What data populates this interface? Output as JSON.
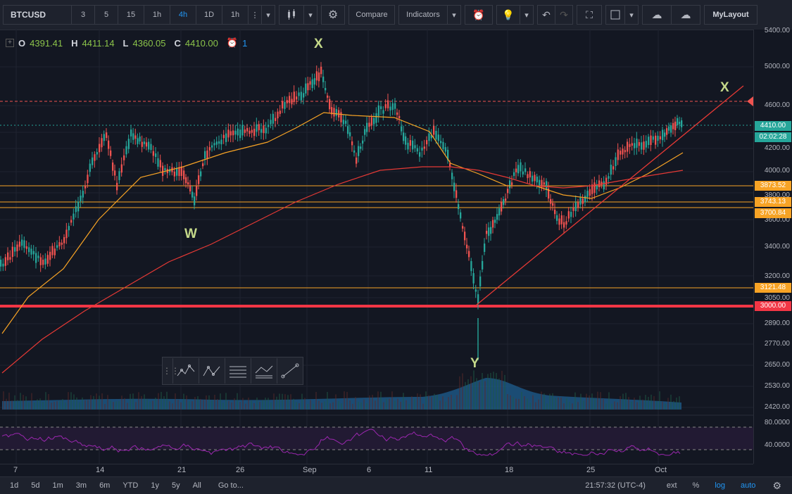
{
  "toolbar": {
    "symbol": "BTCUSD",
    "intervals": [
      "3",
      "5",
      "15",
      "1h",
      "4h",
      "1D",
      "1h"
    ],
    "active_interval": "4h",
    "compare_label": "Compare",
    "indicators_label": "Indicators",
    "layout_label": "MyLayout"
  },
  "legend": {
    "o_key": "O",
    "o_val": "4391.41",
    "h_key": "H",
    "h_val": "4411.14",
    "l_key": "L",
    "l_val": "4360.05",
    "c_key": "C",
    "c_val": "4410.00",
    "alert_count": "1"
  },
  "annotations": {
    "x_top": "X",
    "x_right": "X",
    "w": "W",
    "y": "Y"
  },
  "price_axis": {
    "labels": [
      "5400.00",
      "5000.00",
      "4600.00",
      "4200.00",
      "4000.00",
      "3800.00",
      "3600.00",
      "3400.00",
      "3200.00",
      "3050.00",
      "2890.00",
      "2770.00",
      "2650.00",
      "2530.00",
      "2420.00"
    ],
    "rsi_labels": [
      "80.0000",
      "40.0000"
    ]
  },
  "price_tags": [
    {
      "label": "4410.00",
      "color": "#26a69a"
    },
    {
      "label": "02:02:28",
      "color": "#26a69a"
    },
    {
      "label": "3873.52",
      "color": "#f7a325"
    },
    {
      "label": "3743.13",
      "color": "#f7a325"
    },
    {
      "label": "3700.84",
      "color": "#f7a325"
    },
    {
      "label": "3121.48",
      "color": "#f7a325"
    },
    {
      "label": "3000.00",
      "color": "#f23645"
    }
  ],
  "time_axis": [
    "7",
    "14",
    "21",
    "26",
    "Sep",
    "6",
    "11",
    "18",
    "25",
    "Oct"
  ],
  "bottom_bar": {
    "ranges": [
      "1d",
      "5d",
      "1m",
      "3m",
      "6m",
      "YTD",
      "1y",
      "5y",
      "All"
    ],
    "goto": "Go to...",
    "clock": "21:57:32 (UTC-4)",
    "ext": "ext",
    "pct": "%",
    "log": "log",
    "auto": "auto"
  },
  "colors": {
    "bg": "#131722",
    "up": "#26a69a",
    "down": "#ef5350",
    "ma_fast": "#f7a325",
    "ma_slow": "#e53935",
    "trendline": "#e53935",
    "support": "#f7a325",
    "hard_support": "#f23645",
    "volume": "#1e5a8a",
    "rsi": "#9c27b0"
  }
}
